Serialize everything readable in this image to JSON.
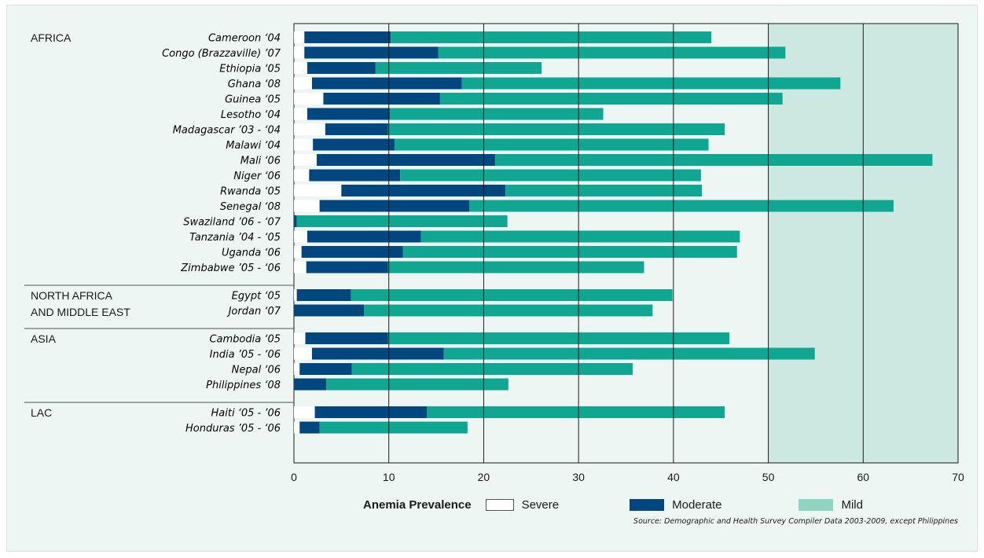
{
  "chart_data": {
    "type": "bar",
    "stacked": true,
    "orientation": "horizontal",
    "title": "",
    "xlabel": "Anemia Prevalence",
    "xlim": [
      0,
      70
    ],
    "xticks": [
      0,
      10,
      20,
      30,
      40,
      50,
      60,
      70
    ],
    "grid": true,
    "legend_position": "bottom",
    "series": [
      {
        "name": "Severe",
        "color": "#ffffff"
      },
      {
        "name": "Moderate",
        "color": "#00467f"
      },
      {
        "name": "Mild",
        "color": "#0fa791"
      }
    ],
    "legend_mild_color": "#8fd3c3",
    "groups": [
      {
        "region": "AFRICA",
        "rows": [
          {
            "label": "Cameroon ‘04",
            "severe": 1.1,
            "moderate": 9.1,
            "mild": 33.8
          },
          {
            "label": "Congo (Brazzaville) ’07",
            "severe": 1.1,
            "moderate": 14.1,
            "mild": 36.6
          },
          {
            "label": "Ethiopia ‘05",
            "severe": 1.4,
            "moderate": 7.2,
            "mild": 17.5
          },
          {
            "label": "Ghana ‘08",
            "severe": 1.9,
            "moderate": 15.8,
            "mild": 39.9
          },
          {
            "label": "Guinea ‘05",
            "severe": 3.1,
            "moderate": 12.3,
            "mild": 36.1
          },
          {
            "label": "Lesotho ‘04",
            "severe": 1.4,
            "moderate": 8.7,
            "mild": 22.5
          },
          {
            "label": "Madagascar ’03 - ‘04",
            "severe": 3.3,
            "moderate": 6.6,
            "mild": 35.5
          },
          {
            "label": "Malawi ‘04",
            "severe": 2.0,
            "moderate": 8.6,
            "mild": 33.1
          },
          {
            "label": "Mali ‘06",
            "severe": 2.4,
            "moderate": 18.8,
            "mild": 46.1
          },
          {
            "label": "Niger ‘06",
            "severe": 1.6,
            "moderate": 9.6,
            "mild": 31.7
          },
          {
            "label": "Rwanda ‘05",
            "severe": 5.0,
            "moderate": 17.3,
            "mild": 20.7
          },
          {
            "label": "Senegal ‘08",
            "severe": 2.7,
            "moderate": 15.8,
            "mild": 44.7
          },
          {
            "label": "Swaziland ’06 - ‘07",
            "severe": 0.0,
            "moderate": 0.3,
            "mild": 22.2
          },
          {
            "label": "Tanzania ’04 - ‘05",
            "severe": 1.4,
            "moderate": 12.0,
            "mild": 33.6
          },
          {
            "label": "Uganda ‘06",
            "severe": 0.8,
            "moderate": 10.7,
            "mild": 35.2
          },
          {
            "label": "Zimbabwe ’05 - ‘06",
            "severe": 1.3,
            "moderate": 8.6,
            "mild": 27.0
          }
        ]
      },
      {
        "region": "NORTH AFRICA\nAND MIDDLE EAST",
        "rows": [
          {
            "label": "Egypt ‘05",
            "severe": 0.3,
            "moderate": 5.7,
            "mild": 33.9
          },
          {
            "label": "Jordan ‘07",
            "severe": 0.0,
            "moderate": 7.4,
            "mild": 30.4
          }
        ]
      },
      {
        "region": "ASIA",
        "rows": [
          {
            "label": "Cambodia ‘05",
            "severe": 1.2,
            "moderate": 8.7,
            "mild": 36.0
          },
          {
            "label": "India ’05 - ‘06",
            "severe": 1.9,
            "moderate": 13.9,
            "mild": 39.1
          },
          {
            "label": "Nepal ‘06",
            "severe": 0.6,
            "moderate": 5.5,
            "mild": 29.6
          },
          {
            "label": "Philippines ‘08",
            "severe": 0.0,
            "moderate": 3.4,
            "mild": 19.2
          }
        ]
      },
      {
        "region": "LAC",
        "rows": [
          {
            "label": "Haiti ‘05 - ’06",
            "severe": 2.2,
            "moderate": 11.8,
            "mild": 31.4
          },
          {
            "label": "Honduras ’05 - ‘06",
            "severe": 0.6,
            "moderate": 2.1,
            "mild": 15.6
          }
        ]
      }
    ]
  },
  "source_note": "Source: Demographic and Health Survey Compiler Data 2003-2009, except Philippines"
}
